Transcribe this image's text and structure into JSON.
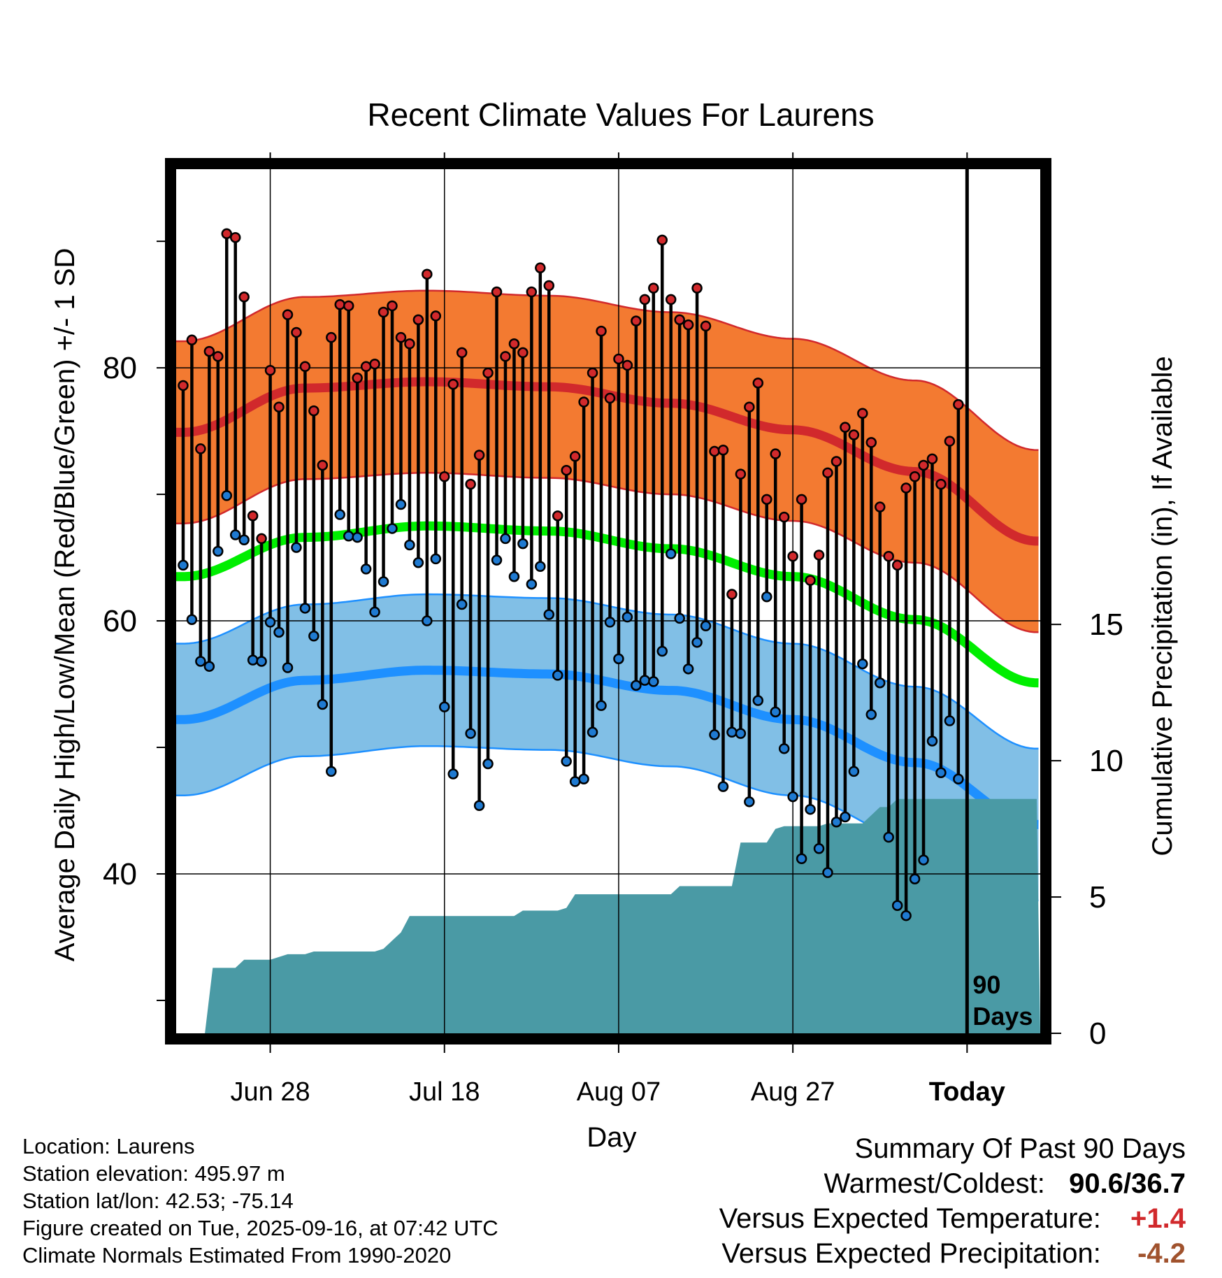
{
  "chart_data": {
    "type": "line",
    "title": "Recent Climate Values For Laurens",
    "xlabel": "Day",
    "ylabel": "Average Daily High/Low/Mean (Red/Blue/Green) +/- 1 SD",
    "y2label": "Cumulative Precipitation (in), If Available",
    "x_ticks": [
      {
        "day": 10,
        "label": "Jun 28"
      },
      {
        "day": 30,
        "label": "Jul 18"
      },
      {
        "day": 50,
        "label": "Aug 07"
      },
      {
        "day": 70,
        "label": "Aug 27"
      },
      {
        "day": 90,
        "label": "Today"
      }
    ],
    "y_ticks": [
      40,
      60,
      80
    ],
    "y2_ticks": [
      0,
      5,
      10,
      15
    ],
    "ylim": [
      27.4,
      95.7
    ],
    "y2lim": [
      0,
      31.7
    ],
    "xlim": [
      -0.8,
      98.4
    ],
    "today_marker_label": "90 Days",
    "colors": {
      "high": "#d1292c",
      "high_band": "#f37a31",
      "low": "#1e90ff",
      "low_band": "#81bfe6",
      "mean": "#00ee00",
      "precip": "#4a9aa5",
      "dot_high": "#d1292c",
      "dot_low": "#1f7ad1"
    },
    "normal_high": [
      74.9,
      78.4,
      78.9,
      78.5,
      77.2,
      75.1,
      71.8,
      66.3
    ],
    "normal_low": [
      52.2,
      55.3,
      56.1,
      55.8,
      54.5,
      52.2,
      48.8,
      43.9
    ],
    "normal_mean": [
      63.5,
      66.6,
      67.5,
      67.1,
      65.7,
      63.5,
      60.1,
      55.1
    ],
    "normal_days": [
      0,
      14,
      28,
      42,
      56,
      70,
      84,
      98
    ],
    "sd_high": 7.2,
    "sd_low": 6.0,
    "days": [
      0,
      1,
      2,
      3,
      4,
      5,
      6,
      7,
      8,
      9,
      10,
      11,
      12,
      13,
      14,
      15,
      16,
      17,
      18,
      19,
      20,
      21,
      22,
      23,
      24,
      25,
      26,
      27,
      28,
      29,
      30,
      31,
      32,
      33,
      34,
      35,
      36,
      37,
      38,
      39,
      40,
      41,
      42,
      43,
      44,
      45,
      46,
      47,
      48,
      49,
      50,
      51,
      52,
      53,
      54,
      55,
      56,
      57,
      58,
      59,
      60,
      61,
      62,
      63,
      64,
      65,
      66,
      67,
      68,
      69,
      70,
      71,
      72,
      73,
      74,
      75,
      76,
      77,
      78,
      79,
      80,
      81,
      82,
      83,
      84,
      85,
      86,
      87,
      88,
      89,
      90
    ],
    "highs": [
      78.6,
      82.2,
      73.6,
      81.3,
      80.9,
      90.6,
      90.3,
      85.6,
      68.3,
      66.5,
      79.8,
      76.9,
      84.2,
      82.8,
      80.1,
      76.6,
      72.3,
      82.4,
      85.0,
      84.9,
      79.2,
      80.1,
      80.3,
      84.4,
      84.9,
      82.4,
      81.9,
      83.8,
      87.4,
      84.1,
      71.4,
      78.7,
      81.2,
      70.8,
      73.1,
      79.6,
      86.0,
      80.9,
      81.9,
      81.2,
      86.0,
      87.9,
      86.5,
      68.3,
      71.9,
      73.0,
      77.3,
      79.6,
      82.9,
      77.6,
      80.7,
      80.2,
      83.7,
      85.4,
      86.3,
      90.1,
      85.4,
      83.8,
      83.4,
      86.3,
      83.3,
      73.4,
      73.5,
      62.1,
      71.6,
      76.9,
      78.8,
      69.6,
      73.2,
      68.2,
      65.1,
      69.6,
      63.2,
      65.2,
      71.7,
      72.6,
      75.3,
      74.7,
      76.4,
      74.1,
      69.0,
      65.1,
      64.4,
      70.5,
      71.4,
      72.3,
      72.8,
      70.8,
      74.2,
      77.1,
      0
    ],
    "lows": [
      64.4,
      60.1,
      56.8,
      56.4,
      65.5,
      69.9,
      66.8,
      66.4,
      56.9,
      56.8,
      59.9,
      59.1,
      56.3,
      65.8,
      61.0,
      58.8,
      53.4,
      48.1,
      68.4,
      66.7,
      66.6,
      64.1,
      60.7,
      63.1,
      67.3,
      69.2,
      66.0,
      64.6,
      60.0,
      64.9,
      53.2,
      47.9,
      61.3,
      51.1,
      45.4,
      48.7,
      64.8,
      66.5,
      63.5,
      66.1,
      62.9,
      64.3,
      60.5,
      55.7,
      48.9,
      47.3,
      47.5,
      51.2,
      53.3,
      59.9,
      57.0,
      60.3,
      54.9,
      55.3,
      55.2,
      57.6,
      65.3,
      60.2,
      56.2,
      58.3,
      59.6,
      51.0,
      46.9,
      51.2,
      51.1,
      45.7,
      53.7,
      61.9,
      52.8,
      49.9,
      46.1,
      41.2,
      45.1,
      42.0,
      40.1,
      44.1,
      44.5,
      48.1,
      56.6,
      52.6,
      55.1,
      42.9,
      37.5,
      36.7,
      39.6,
      41.1,
      50.5,
      48.0,
      52.1,
      47.5,
      0
    ],
    "precip_cum": [
      0,
      0,
      0,
      0,
      2.4,
      2.4,
      2.4,
      2.4,
      2.7,
      2.7,
      2.7,
      2.7,
      2.9,
      2.9,
      2.9,
      3.0,
      3.0,
      3.0,
      3.0,
      3.0,
      3.0,
      3.0,
      3.0,
      3.1,
      3.4,
      3.7,
      4.3,
      4.3,
      4.3,
      4.3,
      4.3,
      4.3,
      4.3,
      4.3,
      4.3,
      4.3,
      4.3,
      4.3,
      4.3,
      4.5,
      4.5,
      4.5,
      4.5,
      4.5,
      4.6,
      5.1,
      5.1,
      5.1,
      5.1,
      5.1,
      5.1,
      5.1,
      5.1,
      5.1,
      5.1,
      5.1,
      5.1,
      5.4,
      5.4,
      5.4,
      5.4,
      5.4,
      5.4,
      5.4,
      7.0,
      7.0,
      7.0,
      7.0,
      7.5,
      7.6,
      7.6,
      7.6,
      7.6,
      7.6,
      7.7,
      7.7,
      7.7,
      7.7,
      7.7,
      8.0,
      8.3,
      8.3,
      8.6,
      8.6,
      8.6,
      8.6,
      8.6,
      8.6,
      8.6,
      8.6,
      8.6,
      8.6,
      8.6,
      8.6,
      8.6,
      8.6,
      8.6,
      8.6,
      8.6
    ],
    "precip_days": [
      -0.2,
      0.4,
      1.0,
      2.5,
      3.4,
      4,
      5,
      6,
      7,
      8,
      9,
      10,
      12,
      13,
      14,
      15,
      16,
      17,
      18,
      19,
      20,
      21,
      22,
      23,
      24,
      25,
      26,
      27,
      28,
      29,
      30,
      31,
      32,
      33,
      34,
      35,
      36,
      37,
      38,
      39,
      40,
      41,
      42,
      43,
      44,
      45,
      46,
      47,
      48,
      49,
      50,
      51,
      52,
      53,
      54,
      55,
      56,
      57,
      58,
      59,
      60,
      61,
      62,
      63,
      64,
      65,
      66,
      67,
      68,
      69,
      70,
      71,
      72,
      73,
      74,
      75,
      76,
      77,
      78,
      79,
      80,
      81,
      82,
      83,
      84,
      85,
      86,
      87,
      88,
      89,
      90,
      91,
      92,
      93,
      94,
      95,
      96,
      97,
      98,
      98.4
    ]
  },
  "location": {
    "location_line": "Location: Laurens",
    "elevation_line": "Station elevation: 495.97 m",
    "latlon_line": "Station lat/lon: 42.53; -75.14",
    "created_line": "Figure created on Tue, 2025-09-16, at 07:42 UTC",
    "normals_line": "Climate Normals Estimated From 1990-2020"
  },
  "summary": {
    "title": "Summary Of Past 90 Days",
    "warm_cold_label": "Warmest/Coldest:",
    "warm_cold_value": "90.6/36.7",
    "temp_label": "Versus Expected Temperature:",
    "temp_value": "+1.4",
    "temp_color": "#d1292c",
    "precip_label": "Versus Expected Precipitation:",
    "precip_value": "-4.2",
    "precip_color": "#a0522d"
  }
}
